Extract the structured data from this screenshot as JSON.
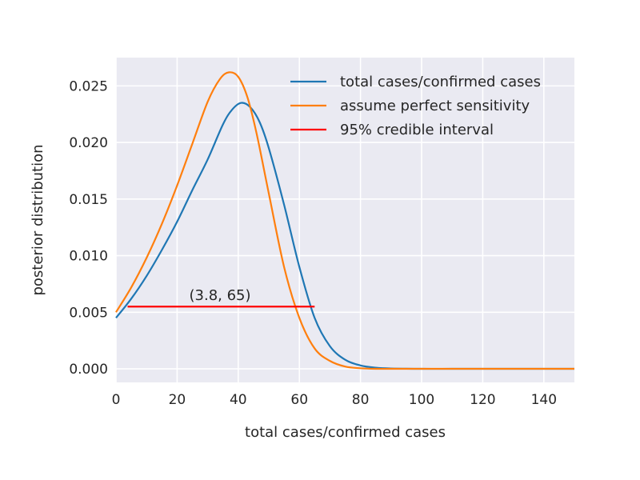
{
  "chart_data": {
    "type": "line",
    "title": "",
    "xlabel": "total cases/confirmed cases",
    "ylabel": "posterior distribution",
    "xlim": [
      0,
      150
    ],
    "ylim": [
      -0.0012,
      0.0275
    ],
    "xticks": [
      0,
      20,
      40,
      60,
      80,
      100,
      120,
      140
    ],
    "xtick_labels": [
      "0",
      "20",
      "40",
      "60",
      "80",
      "100",
      "120",
      "140"
    ],
    "yticks": [
      0.0,
      0.005,
      0.01,
      0.015,
      0.02,
      0.025
    ],
    "ytick_labels": [
      "0.000",
      "0.005",
      "0.010",
      "0.015",
      "0.020",
      "0.025"
    ],
    "grid": true,
    "legend_position": "top-right",
    "series": [
      {
        "name": "total cases/confirmed cases",
        "color": "#1f77b4",
        "x": [
          0,
          5,
          10,
          15,
          20,
          25,
          30,
          35,
          38,
          41,
          44,
          47,
          50,
          55,
          60,
          65,
          70,
          75,
          80,
          85,
          90,
          100,
          110,
          120,
          130,
          140,
          150
        ],
        "y": [
          0.0045,
          0.0062,
          0.0082,
          0.0105,
          0.013,
          0.0158,
          0.0185,
          0.0216,
          0.0229,
          0.0235,
          0.0231,
          0.0218,
          0.0195,
          0.0145,
          0.009,
          0.0045,
          0.002,
          0.0008,
          0.0003,
          0.0001,
          3e-05,
          0.0,
          0.0,
          0.0,
          0.0,
          0.0,
          0.0
        ]
      },
      {
        "name": "assume perfect sensitivity",
        "color": "#ff7f0e",
        "x": [
          0,
          5,
          10,
          15,
          20,
          25,
          30,
          34,
          37,
          40,
          43,
          46,
          50,
          55,
          60,
          65,
          70,
          75,
          80,
          85,
          90,
          100,
          110,
          120,
          130,
          140,
          150
        ],
        "y": [
          0.005,
          0.0072,
          0.0098,
          0.0128,
          0.0162,
          0.0199,
          0.0236,
          0.0256,
          0.0262,
          0.0258,
          0.024,
          0.0208,
          0.0155,
          0.009,
          0.0045,
          0.0018,
          0.0007,
          0.0002,
          5e-05,
          0.0,
          0.0,
          0.0,
          0.0,
          0.0,
          0.0,
          0.0,
          0.0
        ]
      }
    ],
    "credible_interval": {
      "name": "95% credible interval",
      "color": "#ff0000",
      "x_start": 3.8,
      "x_end": 65,
      "y": 0.0055,
      "label": "(3.8, 65)"
    }
  }
}
